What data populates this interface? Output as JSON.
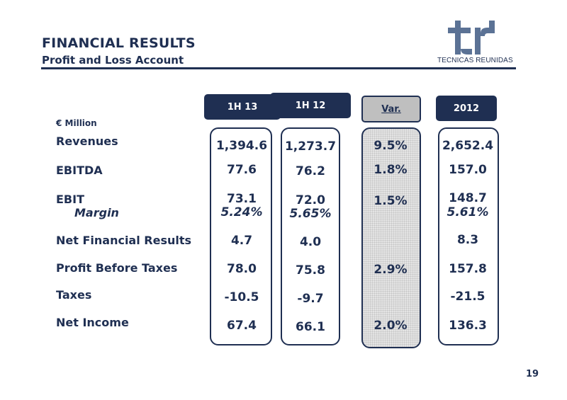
{
  "header": {
    "title": "FINANCIAL RESULTS",
    "subtitle": "Profit and Loss Account",
    "logo_text": "TECNICAS REUNIDAS"
  },
  "columns": {
    "col1": "1H 13",
    "col2": "1H 12",
    "var": "Var.",
    "col4": "2012"
  },
  "unit_label": "€ Million",
  "rows": [
    {
      "label": "Revenues",
      "c1": "1,394.6",
      "c2": "1,273.7",
      "var": "9.5%",
      "c4": "2,652.4"
    },
    {
      "label": "EBITDA",
      "c1": "77.6",
      "c2": "76.2",
      "var": "1.8%",
      "c4": "157.0"
    },
    {
      "label": "EBIT",
      "c1": "73.1",
      "c2": "72.0",
      "var": "1.5%",
      "c4": "148.7"
    },
    {
      "label": "Margin",
      "c1": "5.24%",
      "c2": "5.65%",
      "var": "",
      "c4": "5.61%"
    },
    {
      "label": "Net Financial Results",
      "c1": "4.7",
      "c2": "4.0",
      "var": "",
      "c4": "8.3"
    },
    {
      "label": "Profit Before Taxes",
      "c1": "78.0",
      "c2": "75.8",
      "var": "2.9%",
      "c4": "157.8"
    },
    {
      "label": "Taxes",
      "c1": "-10.5",
      "c2": "-9.7",
      "var": "",
      "c4": "-21.5"
    },
    {
      "label": "Net Income",
      "c1": "67.4",
      "c2": "66.1",
      "var": "2.0%",
      "c4": "136.3"
    }
  ],
  "page_number": "19",
  "colors": {
    "navy": "#1f2f52",
    "header_grey": "#bfbfbf",
    "logo_blue": "#5b7295"
  }
}
